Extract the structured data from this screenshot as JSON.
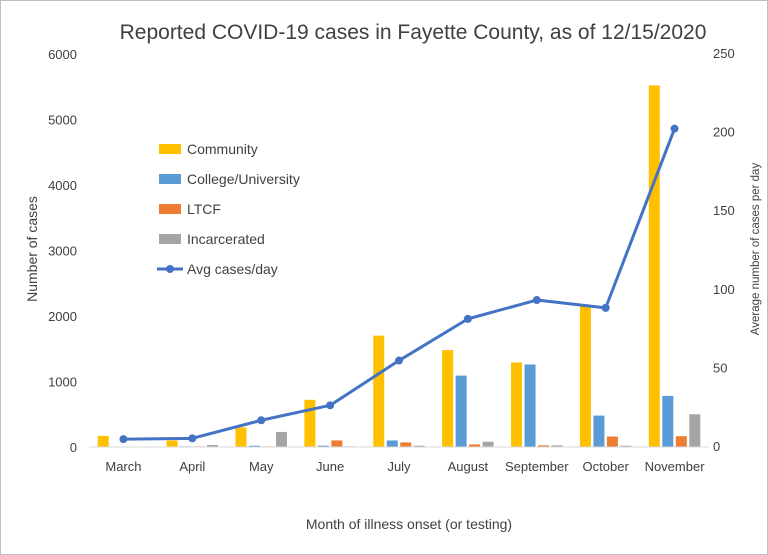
{
  "chart_data": {
    "type": "bar",
    "title": "Reported COVID-19 cases in Fayette County, as of 12/15/2020",
    "xlabel": "Month of illness onset (or testing)",
    "ylabel": "Number of cases",
    "y2label": "Average number of cases per day",
    "ylim": [
      0,
      6000
    ],
    "y2lim": [
      0,
      250
    ],
    "yticks": [
      0,
      1000,
      2000,
      3000,
      4000,
      5000,
      6000
    ],
    "y2ticks": [
      0,
      50,
      100,
      150,
      200,
      250
    ],
    "categories": [
      "March",
      "April",
      "May",
      "June",
      "July",
      "August",
      "September",
      "October",
      "November"
    ],
    "series": [
      {
        "name": "Community",
        "type": "bar",
        "axis": "left",
        "color": "#ffc000",
        "values": [
          170,
          100,
          300,
          720,
          1700,
          1480,
          1290,
          2170,
          5520
        ]
      },
      {
        "name": "College/University",
        "type": "bar",
        "axis": "left",
        "color": "#5b9bd5",
        "values": [
          0,
          10,
          20,
          20,
          100,
          1090,
          1260,
          480,
          780
        ]
      },
      {
        "name": "LTCF",
        "type": "bar",
        "axis": "left",
        "color": "#ed7d31",
        "values": [
          0,
          10,
          10,
          100,
          70,
          40,
          25,
          160,
          165
        ]
      },
      {
        "name": "Incarcerated",
        "type": "bar",
        "axis": "left",
        "color": "#a5a5a5",
        "values": [
          0,
          30,
          230,
          10,
          20,
          80,
          25,
          20,
          500
        ]
      },
      {
        "name": "Avg cases/day",
        "type": "line",
        "axis": "right",
        "color": "#4472c4",
        "values": [
          5,
          5.5,
          17,
          26.5,
          55,
          81.5,
          93.5,
          88.5,
          202.5
        ]
      }
    ],
    "legend": "upper-left-inside",
    "grid": false
  }
}
